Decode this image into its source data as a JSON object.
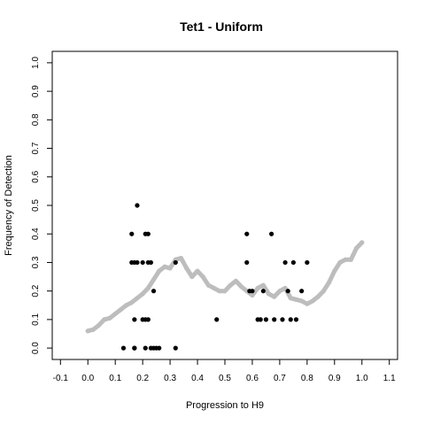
{
  "chart_data": {
    "type": "scatter",
    "title": "Tet1 - Uniform",
    "xlabel": "Progression to H9",
    "ylabel": "Frequency of Detection",
    "xlim": [
      -0.13,
      1.13
    ],
    "ylim": [
      -0.04,
      1.04
    ],
    "x_ticks": [
      "-0.1",
      "0.0",
      "0.1",
      "0.2",
      "0.3",
      "0.4",
      "0.5",
      "0.6",
      "0.7",
      "0.8",
      "0.9",
      "1.0",
      "1.1"
    ],
    "y_ticks": [
      "0.0",
      "0.1",
      "0.2",
      "0.3",
      "0.4",
      "0.5",
      "0.6",
      "0.7",
      "0.8",
      "0.9",
      "1.0"
    ],
    "grid": false,
    "colors": {
      "points": "#000000",
      "smooth": "#bdbdbd",
      "frame": "#000000"
    },
    "series": [
      {
        "style": "points",
        "x": [
          0.13,
          0.16,
          0.16,
          0.17,
          0.17,
          0.17,
          0.17,
          0.18,
          0.18,
          0.2,
          0.2,
          0.21,
          0.21,
          0.21,
          0.22,
          0.22,
          0.22,
          0.23,
          0.23,
          0.24,
          0.24,
          0.25,
          0.26,
          0.32,
          0.32,
          0.47,
          0.58,
          0.58,
          0.59,
          0.6,
          0.62,
          0.63,
          0.64,
          0.65,
          0.67,
          0.68,
          0.71,
          0.72,
          0.73,
          0.74,
          0.75,
          0.76,
          0.78,
          0.8
        ],
        "y": [
          0.0,
          0.4,
          0.3,
          0.1,
          0.3,
          0.0,
          0.0,
          0.5,
          0.3,
          0.3,
          0.1,
          0.4,
          0.1,
          0.0,
          0.4,
          0.3,
          0.1,
          0.3,
          0.0,
          0.2,
          0.0,
          0.0,
          0.0,
          0.3,
          0.0,
          0.1,
          0.4,
          0.3,
          0.2,
          0.2,
          0.1,
          0.1,
          0.2,
          0.1,
          0.4,
          0.1,
          0.1,
          0.3,
          0.2,
          0.1,
          0.3,
          0.1,
          0.2,
          0.3
        ]
      },
      {
        "style": "smooth",
        "x": [
          0.0,
          0.02,
          0.04,
          0.06,
          0.08,
          0.1,
          0.12,
          0.14,
          0.16,
          0.18,
          0.2,
          0.22,
          0.24,
          0.26,
          0.28,
          0.3,
          0.32,
          0.34,
          0.36,
          0.38,
          0.4,
          0.42,
          0.44,
          0.46,
          0.48,
          0.5,
          0.52,
          0.54,
          0.56,
          0.58,
          0.6,
          0.62,
          0.64,
          0.66,
          0.68,
          0.7,
          0.72,
          0.74,
          0.76,
          0.78,
          0.8,
          0.82,
          0.84,
          0.86,
          0.88,
          0.9,
          0.92,
          0.94,
          0.96,
          0.98,
          1.0
        ],
        "y": [
          0.06,
          0.065,
          0.08,
          0.1,
          0.105,
          0.12,
          0.135,
          0.15,
          0.16,
          0.175,
          0.19,
          0.21,
          0.24,
          0.27,
          0.285,
          0.28,
          0.31,
          0.315,
          0.28,
          0.25,
          0.27,
          0.25,
          0.22,
          0.21,
          0.2,
          0.2,
          0.22,
          0.235,
          0.215,
          0.2,
          0.185,
          0.21,
          0.22,
          0.19,
          0.18,
          0.2,
          0.21,
          0.175,
          0.17,
          0.165,
          0.155,
          0.165,
          0.18,
          0.2,
          0.23,
          0.27,
          0.3,
          0.31,
          0.31,
          0.35,
          0.37
        ]
      }
    ]
  }
}
